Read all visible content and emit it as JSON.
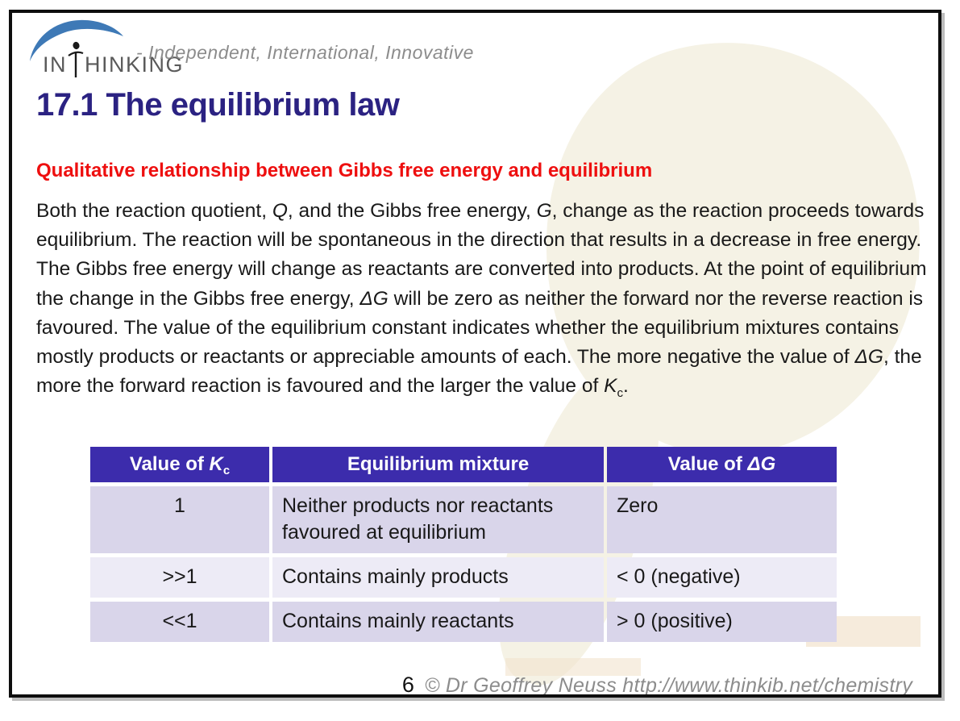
{
  "logo": {
    "brand_in": "IN",
    "brand_rest": "HINKING",
    "tagline": "- Independent, International, Innovative"
  },
  "title": "17.1 The equilibrium law",
  "heading": "Qualitative relationship between Gibbs free energy and equilibrium",
  "paragraph_segments": [
    {
      "t": "Both the reaction quotient, "
    },
    {
      "t": "Q",
      "i": true
    },
    {
      "t": ", and the Gibbs free energy, "
    },
    {
      "t": "G",
      "i": true
    },
    {
      "t": ", change as the reaction proceeds towards equilibrium. The reaction will be spontaneous in the direction that results in a decrease in free energy. The Gibbs free energy will change as reactants are converted into products. At the point of equilibrium the change in the Gibbs free energy, "
    },
    {
      "t": "ΔG",
      "i": true
    },
    {
      "t": " will be zero as neither the forward nor the reverse reaction is favoured. The value of the equilibrium constant indicates whether the equilibrium mixtures contains mostly products or reactants or appreciable amounts of each. The more negative the value of "
    },
    {
      "t": "ΔG",
      "i": true
    },
    {
      "t": ", the more the forward reaction is favoured and the larger the value of "
    },
    {
      "t": "K",
      "i": true
    },
    {
      "t": "c",
      "sub": true
    },
    {
      "t": "."
    }
  ],
  "table": {
    "headers": {
      "kc": [
        {
          "t": "Value of "
        },
        {
          "t": "K",
          "i": true
        },
        {
          "t": "c",
          "sub": true
        }
      ],
      "mixture": [
        {
          "t": "Equilibrium mixture"
        }
      ],
      "dg": [
        {
          "t": "Value of "
        },
        {
          "t": "ΔG",
          "i": true
        }
      ]
    },
    "rows": [
      {
        "kc": "1",
        "mixture": "Neither products nor reactants favoured at equilibrium",
        "dg": "Zero"
      },
      {
        "kc": ">>1",
        "mixture": "Contains mainly products",
        "dg": "< 0 (negative)"
      },
      {
        "kc": "<<1",
        "mixture": "Contains mainly reactants",
        "dg": "> 0 (positive)"
      }
    ]
  },
  "footer": {
    "page_number": "6",
    "copyright": "© Dr Geoffrey Neuss http://www.thinkib.net/chemistry"
  },
  "colors": {
    "title_text": "#2b2282",
    "heading_red": "#ee0f0f",
    "table_header_bg": "#3c2cac",
    "row_dark": "#d9d5ea",
    "row_light": "#edebf6",
    "logo_blue": "#3e79b6",
    "watermark": "#f5f2e5"
  }
}
